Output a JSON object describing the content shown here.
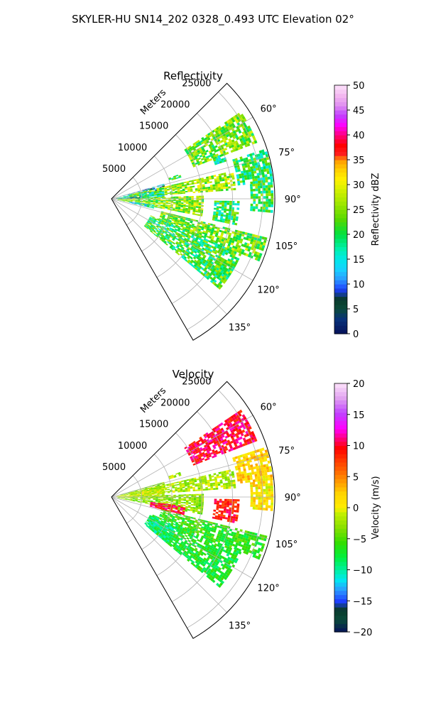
{
  "figure": {
    "title": "SKYLER-HU  SN14_202  0328_0.493 UTC Elevation 02°"
  },
  "chart_data": [
    {
      "type": "heatmap",
      "projection": "polar-sector",
      "title": "Reflectivity",
      "range_axis_label": "Meters",
      "theta_range_deg": [
        45,
        150
      ],
      "range_max_m": 27000,
      "range_ticks": [
        5000,
        10000,
        15000,
        20000,
        25000
      ],
      "range_tick_labels": [
        "5000",
        "10000",
        "15000",
        "20000",
        "25000"
      ],
      "angle_ticks": [
        60,
        75,
        90,
        105,
        120,
        135
      ],
      "angle_tick_labels": [
        "60°",
        "75°",
        "90°",
        "105°",
        "120°",
        "135°"
      ],
      "grid": true,
      "colorbar": {
        "label": "Reflectivity dBZ",
        "vmin": 0,
        "vmax": 50,
        "ticks": [
          0,
          5,
          10,
          15,
          20,
          25,
          30,
          35,
          40,
          45,
          50
        ],
        "tick_labels": [
          "0",
          "5",
          "10",
          "15",
          "20",
          "25",
          "30",
          "35",
          "40",
          "45",
          "50"
        ],
        "colormap": "HomeyerRainbow"
      },
      "echo_regions": [
        {
          "az": [
            56,
            69
          ],
          "r": [
            14500,
            25500
          ],
          "value": 24
        },
        {
          "az": [
            70,
            73
          ],
          "r": [
            10000,
            12000
          ],
          "value": 20
        },
        {
          "az": [
            68,
            72
          ],
          "r": [
            18000,
            20000
          ],
          "value": 18
        },
        {
          "az": [
            74,
            80
          ],
          "r": [
            1500,
            9000
          ],
          "value": 13
        },
        {
          "az": [
            77,
            86
          ],
          "r": [
            3000,
            20500
          ],
          "value": 26
        },
        {
          "az": [
            80,
            90
          ],
          "r": [
            800,
            8500
          ],
          "value": 18
        },
        {
          "az": [
            85,
            91
          ],
          "r": [
            500,
            5000
          ],
          "value": 10
        },
        {
          "az": [
            88,
            101
          ],
          "r": [
            1000,
            15000
          ],
          "value": 25
        },
        {
          "az": [
            98,
            103
          ],
          "r": [
            3000,
            7000
          ],
          "value": 16
        },
        {
          "az": [
            104,
            113
          ],
          "r": [
            8500,
            26500
          ],
          "value": 24
        },
        {
          "az": [
            113,
            130
          ],
          "r": [
            7000,
            23000
          ],
          "value": 21
        },
        {
          "az": [
            72,
            84
          ],
          "r": [
            21000,
            26500
          ],
          "value": 20
        },
        {
          "az": [
            84,
            95
          ],
          "r": [
            23000,
            26500
          ],
          "value": 21
        },
        {
          "az": [
            91,
            102
          ],
          "r": [
            17000,
            21000
          ],
          "value": 20
        },
        {
          "az": [
            118,
            126
          ],
          "r": [
            20000,
            23000
          ],
          "value": 23
        }
      ]
    },
    {
      "type": "heatmap",
      "projection": "polar-sector",
      "title": "Velocity",
      "range_axis_label": "Meters",
      "theta_range_deg": [
        45,
        150
      ],
      "range_max_m": 27000,
      "range_ticks": [
        5000,
        10000,
        15000,
        20000,
        25000
      ],
      "range_tick_labels": [
        "5000",
        "10000",
        "15000",
        "20000",
        "25000"
      ],
      "angle_ticks": [
        60,
        75,
        90,
        105,
        120,
        135
      ],
      "angle_tick_labels": [
        "60°",
        "75°",
        "90°",
        "105°",
        "120°",
        "135°"
      ],
      "grid": true,
      "colorbar": {
        "label": "Velocity (m/s)",
        "vmin": -20,
        "vmax": 20,
        "ticks": [
          -20,
          -15,
          -10,
          -5,
          0,
          5,
          10,
          15,
          20
        ],
        "tick_labels": [
          "−20",
          "−15",
          "−10",
          "−5",
          "0",
          "5",
          "10",
          "15",
          "20"
        ],
        "colormap": "BuDRd18-like"
      },
      "echo_regions": [
        {
          "az": [
            56,
            69
          ],
          "r": [
            14500,
            25500
          ],
          "value": 10
        },
        {
          "az": [
            70,
            73
          ],
          "r": [
            10000,
            12000
          ],
          "value": -2
        },
        {
          "az": [
            74,
            80
          ],
          "r": [
            1500,
            9000
          ],
          "value": -3
        },
        {
          "az": [
            77,
            86
          ],
          "r": [
            3000,
            20500
          ],
          "value": -2
        },
        {
          "az": [
            80,
            90
          ],
          "r": [
            800,
            8500
          ],
          "value": -1
        },
        {
          "az": [
            88,
            101
          ],
          "r": [
            1000,
            15000
          ],
          "value": -3
        },
        {
          "az": [
            104,
            113
          ],
          "r": [
            8500,
            26500
          ],
          "value": -6
        },
        {
          "az": [
            113,
            130
          ],
          "r": [
            7000,
            23000
          ],
          "value": -7
        },
        {
          "az": [
            72,
            84
          ],
          "r": [
            21000,
            26500
          ],
          "value": 2
        },
        {
          "az": [
            84,
            95
          ],
          "r": [
            23000,
            26500
          ],
          "value": 1
        },
        {
          "az": [
            91,
            102
          ],
          "r": [
            17000,
            21000
          ],
          "value": 9
        },
        {
          "az": [
            97,
            104
          ],
          "r": [
            6500,
            12000
          ],
          "value": 10
        },
        {
          "az": [
            115,
            130
          ],
          "r": [
            7000,
            12000
          ],
          "value": -9
        }
      ]
    }
  ]
}
